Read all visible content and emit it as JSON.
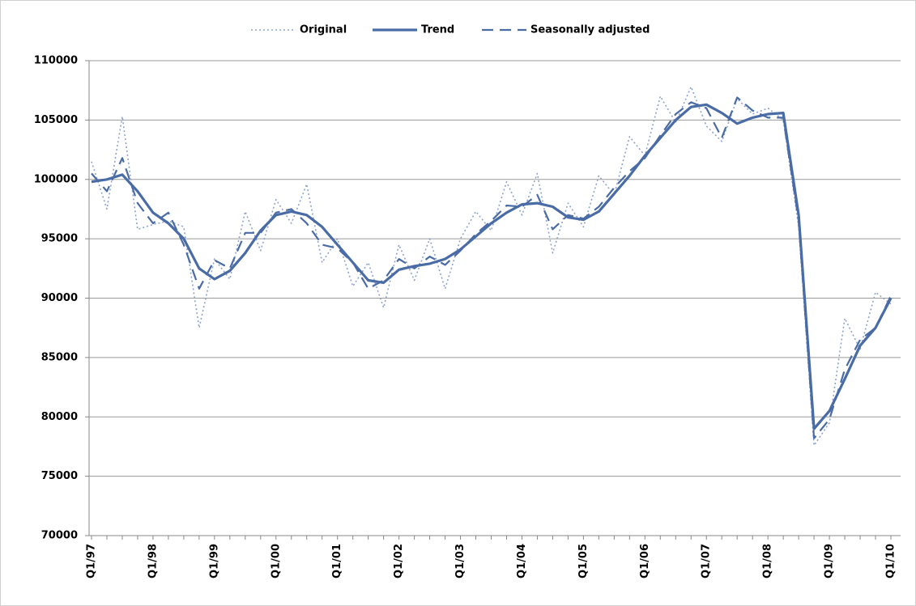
{
  "chart_data": {
    "type": "line",
    "categories": [
      "Q1/97",
      null,
      null,
      null,
      "Q1/98",
      null,
      null,
      null,
      "Q1/99",
      null,
      null,
      null,
      "Q1/00",
      null,
      null,
      null,
      "Q1/01",
      null,
      null,
      null,
      "Q1/02",
      null,
      null,
      null,
      "Q1/03",
      null,
      null,
      null,
      "Q1/04",
      null,
      null,
      null,
      "Q1/05",
      null,
      null,
      null,
      "Q1/06",
      null,
      null,
      null,
      "Q1/07",
      null,
      null,
      null,
      "Q1/08",
      null,
      null,
      null,
      "Q1/09",
      null,
      null,
      null,
      "Q1/10"
    ],
    "series": [
      {
        "name": "Original",
        "color": "#8da2cb",
        "style": "dotted",
        "values": [
          101500,
          97500,
          105300,
          95800,
          96200,
          96500,
          96000,
          87500,
          93300,
          91600,
          97300,
          94000,
          98300,
          96300,
          99600,
          93000,
          95000,
          91000,
          93000,
          89200,
          94500,
          91500,
          95000,
          90800,
          95000,
          97300,
          95700,
          99800,
          97000,
          100500,
          93800,
          98000,
          96000,
          100300,
          98700,
          103600,
          102000,
          107000,
          104800,
          107800,
          104500,
          103200,
          106800,
          105500,
          106000,
          105000,
          96000,
          77600,
          79500,
          88300,
          85700,
          90500,
          89500
        ]
      },
      {
        "name": "Trend",
        "color": "#4a6ca6",
        "style": "solid",
        "values": [
          99800,
          100000,
          100400,
          99000,
          97200,
          96300,
          95000,
          92500,
          91600,
          92300,
          93800,
          95700,
          97000,
          97300,
          97000,
          96000,
          94500,
          93000,
          91500,
          91300,
          92400,
          92700,
          92900,
          93300,
          94100,
          95200,
          96300,
          97200,
          97900,
          98000,
          97700,
          96800,
          96600,
          97300,
          98800,
          100300,
          102000,
          103500,
          105000,
          106100,
          106300,
          105600,
          104700,
          105200,
          105500,
          105600,
          97000,
          79000,
          80500,
          83200,
          86000,
          87500,
          90000
        ]
      },
      {
        "name": "Seasonally adjusted",
        "color": "#4a6ca6",
        "style": "dashed",
        "values": [
          100500,
          99000,
          101800,
          98000,
          96300,
          97200,
          94500,
          90800,
          93200,
          92500,
          95500,
          95500,
          97200,
          97500,
          96300,
          94500,
          94200,
          93000,
          90800,
          91500,
          93300,
          92500,
          93500,
          92800,
          94000,
          95400,
          96500,
          97800,
          97700,
          98700,
          95800,
          97000,
          96700,
          97700,
          99300,
          100700,
          101800,
          103700,
          105500,
          106500,
          106000,
          103500,
          106900,
          105800,
          105200,
          105200,
          96500,
          78200,
          79800,
          84000,
          86500,
          87500,
          90200
        ]
      }
    ],
    "ylim": [
      70000,
      110000
    ],
    "yticks": [
      70000,
      75000,
      80000,
      85000,
      90000,
      95000,
      100000,
      105000,
      110000
    ],
    "grid": true,
    "legend": "top"
  }
}
